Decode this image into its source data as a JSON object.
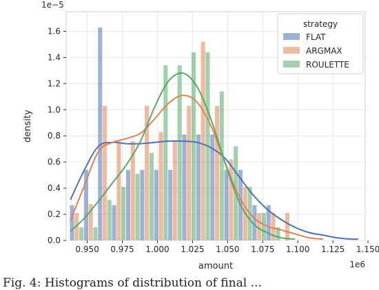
{
  "chart_data": {
    "type": "histogram",
    "x_multiplier": "1e6",
    "y_multiplier": "1e−5",
    "xlabel": "amount",
    "ylabel": "density",
    "xlim": [
      0.935,
      1.148
    ],
    "ylim": [
      0,
      1.75
    ],
    "xticks": [
      0.95,
      0.975,
      1.0,
      1.025,
      1.05,
      1.075,
      1.1,
      1.125,
      1.15
    ],
    "xtick_labels": [
      "0.950",
      "0.975",
      "1.000",
      "1.025",
      "1.050",
      "1.075",
      "1.100",
      "1.125",
      "1.150"
    ],
    "yticks": [
      0.0,
      0.2,
      0.4,
      0.6,
      0.8,
      1.0,
      1.2,
      1.4,
      1.6
    ],
    "ytick_labels": [
      "0.0",
      "0.2",
      "0.4",
      "0.6",
      "0.8",
      "1.0",
      "1.2",
      "1.4",
      "1.6"
    ],
    "grid": true,
    "legend": {
      "title": "strategy",
      "placement": "top-right"
    },
    "bin_edges": [
      0.9375,
      0.9475,
      0.9575,
      0.9675,
      0.9775,
      0.9875,
      0.9975,
      1.0075,
      1.0175,
      1.0275,
      1.0375,
      1.0475,
      1.0575,
      1.0675,
      1.0775,
      1.0875,
      1.0975,
      1.1075
    ],
    "series": [
      {
        "name": "FLAT",
        "color": "#4c72b0",
        "values": [
          0.27,
          0.54,
          1.63,
          0.27,
          0.54,
          0.54,
          0.54,
          0.54,
          0.81,
          0.81,
          0.81,
          0.54,
          0.54,
          0.27,
          0.27,
          0.0,
          0.0
        ],
        "kde_x": [
          0.938,
          0.948,
          0.958,
          0.968,
          0.978,
          0.988,
          0.998,
          1.008,
          1.018,
          1.028,
          1.038,
          1.048,
          1.058,
          1.068,
          1.078,
          1.088,
          1.098,
          1.108,
          1.118,
          1.128,
          1.138,
          1.143
        ],
        "kde_y": [
          0.31,
          0.54,
          0.72,
          0.75,
          0.74,
          0.74,
          0.75,
          0.76,
          0.76,
          0.75,
          0.71,
          0.63,
          0.49,
          0.35,
          0.24,
          0.16,
          0.1,
          0.06,
          0.04,
          0.02,
          0.01,
          0.01
        ]
      },
      {
        "name": "ARGMAX",
        "color": "#dd8452",
        "values": [
          0.21,
          0.28,
          1.03,
          0.76,
          0.76,
          1.03,
          0.83,
          0.76,
          1.03,
          1.52,
          1.03,
          0.62,
          0.41,
          0.21,
          0.21,
          0.21,
          0.0
        ],
        "kde_x": [
          0.938,
          0.948,
          0.958,
          0.968,
          0.978,
          0.988,
          0.998,
          1.008,
          1.018,
          1.028,
          1.038,
          1.048,
          1.058,
          1.068,
          1.078,
          1.088,
          1.098,
          1.108,
          1.118
        ],
        "kde_y": [
          0.15,
          0.42,
          0.68,
          0.75,
          0.78,
          0.82,
          0.93,
          1.05,
          1.11,
          1.06,
          0.88,
          0.6,
          0.34,
          0.18,
          0.11,
          0.08,
          0.05,
          0.02,
          0.01
        ]
      },
      {
        "name": "ROULETTE",
        "color": "#55a868",
        "values": [
          0.1,
          0.1,
          0.31,
          0.41,
          0.51,
          0.67,
          1.34,
          1.34,
          1.44,
          1.44,
          1.14,
          0.72,
          0.41,
          0.21,
          0.1,
          0.0,
          0.0
        ],
        "kde_x": [
          0.938,
          0.948,
          0.958,
          0.968,
          0.978,
          0.988,
          0.998,
          1.008,
          1.018,
          1.028,
          1.038,
          1.048,
          1.058,
          1.068,
          1.078,
          1.088,
          1.098
        ],
        "kde_y": [
          0.07,
          0.17,
          0.3,
          0.44,
          0.58,
          0.76,
          1.02,
          1.22,
          1.28,
          1.18,
          0.93,
          0.6,
          0.3,
          0.13,
          0.06,
          0.02,
          0.01
        ]
      }
    ]
  },
  "caption": "Fig. 4: Histograms of distribution of final ..."
}
